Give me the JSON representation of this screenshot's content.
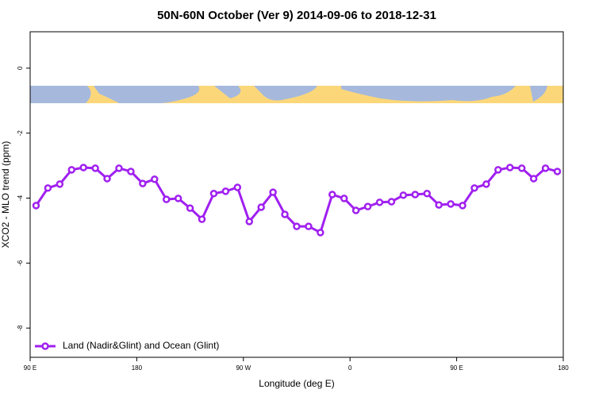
{
  "chart_data": {
    "type": "line",
    "title": "50N-60N October (Ver 9)   2014-09-06 to 2018-12-31",
    "x_label": "Longitude (deg E)",
    "y_label": "XCO2 - MLO trend (ppm)",
    "x": [
      95,
      105,
      115,
      125,
      135,
      145,
      155,
      165,
      175,
      185,
      195,
      205,
      215,
      225,
      235,
      245,
      255,
      265,
      275,
      285,
      295,
      305,
      315,
      325,
      335,
      345,
      355,
      365,
      375,
      385,
      395,
      405,
      415,
      425,
      435,
      445,
      455,
      465,
      475,
      485,
      495,
      505,
      515,
      525,
      535
    ],
    "series": [
      {
        "name": "Land (Nadir&Glint) and Ocean (Glint)",
        "color": "#a020f0",
        "values": [
          -4.23,
          -3.69,
          -3.57,
          -3.13,
          -3.06,
          -3.08,
          -3.4,
          -3.08,
          -3.18,
          -3.55,
          -3.42,
          -4.04,
          -4.01,
          -4.31,
          -4.65,
          -3.86,
          -3.79,
          -3.67,
          -4.72,
          -4.28,
          -3.82,
          -4.5,
          -4.87,
          -4.87,
          -5.06,
          -3.89,
          -4.01,
          -4.38,
          -4.26,
          -4.13,
          -4.11,
          -3.91,
          -3.89,
          -3.86,
          -4.21,
          -4.18,
          -4.23,
          -3.69,
          -3.57,
          -3.13,
          -3.06,
          -3.08,
          -3.4,
          -3.08,
          -3.18
        ]
      }
    ],
    "xlim": [
      90,
      540
    ],
    "xticks": [
      {
        "value": 90,
        "label": "90 E"
      },
      180,
      {
        "value": 270,
        "label": "90 W"
      },
      {
        "value": 360,
        "label": "0"
      },
      {
        "value": 450,
        "label": "90 E"
      },
      {
        "value": 540,
        "label": "180"
      }
    ],
    "ylim": [
      -8.9,
      1.12
    ],
    "yticks": [
      0,
      -2,
      -4,
      -6,
      -8
    ],
    "legend": "bottom-left"
  }
}
